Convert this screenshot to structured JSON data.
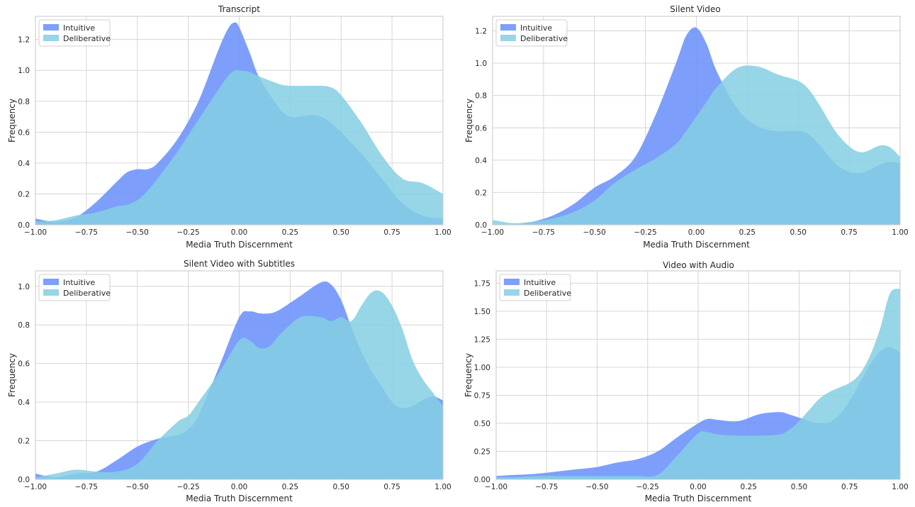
{
  "colors": {
    "intuitive": "#6f95fb",
    "deliberative": "#84cfe3",
    "grid": "#d6d6d6",
    "frame": "#c7c7c7"
  },
  "chart_data": [
    {
      "type": "area",
      "title": "Transcript",
      "xlabel": "Media Truth Discernment",
      "ylabel": "Frequency",
      "xlim": [
        -1.0,
        1.0
      ],
      "ylim": [
        0,
        1.35
      ],
      "xticks": [
        -1.0,
        -0.75,
        -0.5,
        -0.25,
        0.0,
        0.25,
        0.5,
        0.75,
        1.0
      ],
      "xtick_labels": [
        "−1.00",
        "−0.75",
        "−0.50",
        "−0.25",
        "0.00",
        "0.25",
        "0.50",
        "0.75",
        "1.00"
      ],
      "yticks": [
        0.0,
        0.2,
        0.4,
        0.6,
        0.8,
        1.0,
        1.2
      ],
      "ytick_labels": [
        "0.0",
        "0.2",
        "0.4",
        "0.6",
        "0.8",
        "1.0",
        "1.2"
      ],
      "legend": "top-left",
      "grid": true,
      "x": [
        -1.0,
        -0.9,
        -0.8,
        -0.7,
        -0.6,
        -0.55,
        -0.5,
        -0.45,
        -0.4,
        -0.3,
        -0.2,
        -0.1,
        -0.05,
        -0.02,
        0.0,
        0.05,
        0.1,
        0.2,
        0.25,
        0.3,
        0.35,
        0.4,
        0.45,
        0.5,
        0.6,
        0.7,
        0.8,
        0.9,
        1.0
      ],
      "series": [
        {
          "name": "Intuitive",
          "values": [
            0.04,
            0.02,
            0.05,
            0.15,
            0.28,
            0.34,
            0.36,
            0.36,
            0.4,
            0.56,
            0.8,
            1.14,
            1.28,
            1.31,
            1.28,
            1.12,
            0.95,
            0.75,
            0.7,
            0.7,
            0.71,
            0.7,
            0.66,
            0.6,
            0.46,
            0.3,
            0.14,
            0.06,
            0.04
          ]
        },
        {
          "name": "Deliberative",
          "values": [
            0.02,
            0.03,
            0.06,
            0.08,
            0.12,
            0.13,
            0.16,
            0.22,
            0.3,
            0.48,
            0.68,
            0.88,
            0.97,
            1.0,
            1.0,
            0.99,
            0.96,
            0.91,
            0.9,
            0.9,
            0.9,
            0.9,
            0.89,
            0.84,
            0.66,
            0.45,
            0.3,
            0.27,
            0.2
          ]
        }
      ]
    },
    {
      "type": "area",
      "title": "Silent Video",
      "xlabel": "Media Truth Discernment",
      "ylabel": "Frequency",
      "xlim": [
        -1.0,
        1.0
      ],
      "ylim": [
        0,
        1.29
      ],
      "xticks": [
        -1.0,
        -0.75,
        -0.5,
        -0.25,
        0.0,
        0.25,
        0.5,
        0.75,
        1.0
      ],
      "xtick_labels": [
        "−1.00",
        "−0.75",
        "−0.50",
        "−0.25",
        "0.00",
        "0.25",
        "0.50",
        "0.75",
        "1.00"
      ],
      "yticks": [
        0.0,
        0.2,
        0.4,
        0.6,
        0.8,
        1.0,
        1.2
      ],
      "ytick_labels": [
        "0.0",
        "0.2",
        "0.4",
        "0.6",
        "0.8",
        "1.0",
        "1.2"
      ],
      "legend": "top-left",
      "grid": true,
      "x": [
        -1.0,
        -0.9,
        -0.8,
        -0.7,
        -0.6,
        -0.5,
        -0.4,
        -0.3,
        -0.2,
        -0.1,
        -0.05,
        0.0,
        0.05,
        0.1,
        0.2,
        0.3,
        0.4,
        0.5,
        0.55,
        0.6,
        0.7,
        0.8,
        0.9,
        0.95,
        1.0
      ],
      "series": [
        {
          "name": "Intuitive",
          "values": [
            0.0,
            0.0,
            0.02,
            0.06,
            0.13,
            0.23,
            0.3,
            0.42,
            0.68,
            1.0,
            1.17,
            1.22,
            1.12,
            0.95,
            0.72,
            0.61,
            0.58,
            0.58,
            0.56,
            0.5,
            0.36,
            0.32,
            0.37,
            0.39,
            0.38
          ]
        },
        {
          "name": "Deliberative",
          "values": [
            0.03,
            0.01,
            0.02,
            0.04,
            0.08,
            0.15,
            0.26,
            0.34,
            0.41,
            0.5,
            0.58,
            0.67,
            0.76,
            0.85,
            0.97,
            0.98,
            0.93,
            0.89,
            0.84,
            0.75,
            0.55,
            0.45,
            0.49,
            0.48,
            0.42
          ]
        }
      ]
    },
    {
      "type": "area",
      "title": "Silent Video with Subtitles",
      "xlabel": "Media Truth Discernment",
      "ylabel": "Frequency",
      "xlim": [
        -1.0,
        1.0
      ],
      "ylim": [
        0,
        1.08
      ],
      "xticks": [
        -1.0,
        -0.75,
        -0.5,
        -0.25,
        0.0,
        0.25,
        0.5,
        0.75,
        1.0
      ],
      "xtick_labels": [
        "−1.00",
        "−0.75",
        "−0.50",
        "−0.25",
        "0.00",
        "0.25",
        "0.50",
        "0.75",
        "1.00"
      ],
      "yticks": [
        0.0,
        0.2,
        0.4,
        0.6,
        0.8,
        1.0
      ],
      "ytick_labels": [
        "0.0",
        "0.2",
        "0.4",
        "0.6",
        "0.8",
        "1.0"
      ],
      "legend": "top-left",
      "grid": true,
      "x": [
        -1.0,
        -0.9,
        -0.8,
        -0.7,
        -0.6,
        -0.5,
        -0.4,
        -0.3,
        -0.25,
        -0.2,
        -0.1,
        0.0,
        0.05,
        0.1,
        0.15,
        0.2,
        0.3,
        0.4,
        0.45,
        0.5,
        0.55,
        0.6,
        0.65,
        0.7,
        0.75,
        0.8,
        0.85,
        0.9,
        0.95,
        1.0
      ],
      "series": [
        {
          "name": "Intuitive",
          "values": [
            0.03,
            0.01,
            0.03,
            0.04,
            0.1,
            0.17,
            0.21,
            0.23,
            0.26,
            0.33,
            0.58,
            0.84,
            0.87,
            0.86,
            0.86,
            0.88,
            0.95,
            1.02,
            1.01,
            0.93,
            0.79,
            0.66,
            0.56,
            0.48,
            0.4,
            0.37,
            0.38,
            0.41,
            0.43,
            0.41
          ]
        },
        {
          "name": "Deliberative",
          "values": [
            0.01,
            0.03,
            0.05,
            0.04,
            0.04,
            0.08,
            0.2,
            0.3,
            0.33,
            0.4,
            0.55,
            0.72,
            0.72,
            0.68,
            0.69,
            0.75,
            0.84,
            0.84,
            0.82,
            0.84,
            0.82,
            0.9,
            0.97,
            0.97,
            0.9,
            0.78,
            0.62,
            0.52,
            0.45,
            0.38
          ]
        }
      ]
    },
    {
      "type": "area",
      "title": "Video with Audio",
      "xlabel": "Media Truth Discernment",
      "ylabel": "Frequency",
      "xlim": [
        -1.0,
        1.0
      ],
      "ylim": [
        0,
        1.86
      ],
      "xticks": [
        -1.0,
        -0.75,
        -0.5,
        -0.25,
        0.0,
        0.25,
        0.5,
        0.75,
        1.0
      ],
      "xtick_labels": [
        "−1.00",
        "−0.75",
        "−0.50",
        "−0.25",
        "0.00",
        "0.25",
        "0.50",
        "0.75",
        "1.00"
      ],
      "yticks": [
        0.0,
        0.25,
        0.5,
        0.75,
        1.0,
        1.25,
        1.5,
        1.75
      ],
      "ytick_labels": [
        "0.00",
        "0.25",
        "0.50",
        "0.75",
        "1.00",
        "1.25",
        "1.50",
        "1.75"
      ],
      "legend": "top-left",
      "grid": true,
      "x": [
        -1.0,
        -0.9,
        -0.8,
        -0.7,
        -0.6,
        -0.5,
        -0.4,
        -0.3,
        -0.2,
        -0.1,
        0.0,
        0.05,
        0.1,
        0.2,
        0.3,
        0.4,
        0.45,
        0.5,
        0.55,
        0.6,
        0.65,
        0.7,
        0.75,
        0.8,
        0.85,
        0.9,
        0.95,
        1.0
      ],
      "series": [
        {
          "name": "Intuitive",
          "values": [
            0.03,
            0.04,
            0.05,
            0.07,
            0.09,
            0.11,
            0.15,
            0.18,
            0.25,
            0.38,
            0.5,
            0.54,
            0.53,
            0.52,
            0.58,
            0.6,
            0.58,
            0.55,
            0.52,
            0.5,
            0.51,
            0.58,
            0.7,
            0.86,
            1.02,
            1.14,
            1.18,
            1.13
          ]
        },
        {
          "name": "Deliberative",
          "values": [
            0.02,
            0.02,
            0.03,
            0.03,
            0.03,
            0.03,
            0.03,
            0.03,
            0.04,
            0.22,
            0.41,
            0.42,
            0.4,
            0.39,
            0.39,
            0.4,
            0.44,
            0.52,
            0.62,
            0.72,
            0.78,
            0.82,
            0.86,
            0.94,
            1.1,
            1.34,
            1.66,
            1.7
          ]
        }
      ]
    }
  ]
}
